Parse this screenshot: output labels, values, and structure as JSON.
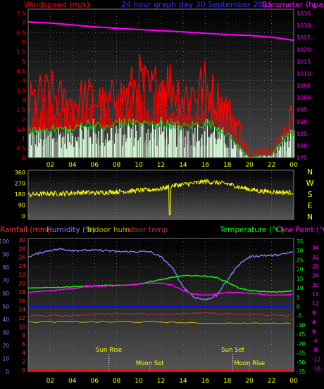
{
  "chart_data": [
    {
      "type": "area",
      "title": "24 hour graph day  30 September 2015",
      "left_label": "Windspeed (m/s)",
      "right_label": "Barometer (hpa)",
      "x_ticks": [
        "02",
        "04",
        "06",
        "08",
        "10",
        "12",
        "14",
        "16",
        "18",
        "20",
        "22",
        "00"
      ],
      "y_left_ticks": [
        "7.5",
        "7",
        "6.5",
        "6",
        "5.5",
        "5",
        "4.5",
        "4",
        "3.5",
        "3",
        "2.5",
        "2",
        "1.5",
        "1",
        "0.5",
        "0"
      ],
      "y_right_ticks": [
        "1035",
        "1030",
        "1025",
        "1020",
        "1015",
        "1010",
        "1005",
        "1000",
        "995",
        "990",
        "985",
        "980",
        "975"
      ],
      "ylim_left": [
        0,
        7.5
      ],
      "ylim_right": [
        975,
        1035
      ],
      "colors": {
        "gust": "#ff0000",
        "average": "#00cc00",
        "barometer": "#ff00ff",
        "bars": "#d8ffd8",
        "left_text": "#ff0000",
        "right_text": "#ff00ff",
        "title": "#3333ff",
        "axis_text": "#ffff00"
      },
      "series": [
        {
          "key": "gust",
          "x": [
            0,
            1,
            2,
            3,
            4,
            5,
            6,
            7,
            8,
            9,
            10,
            11,
            12,
            13,
            14,
            15,
            16,
            17,
            18,
            19,
            20,
            21,
            22,
            23,
            24
          ],
          "values": [
            3.0,
            3.4,
            3.6,
            3.2,
            3.0,
            3.3,
            3.3,
            2.8,
            3.4,
            3.5,
            4.3,
            3.6,
            4.2,
            4.1,
            3.4,
            3.7,
            4.0,
            3.3,
            2.7,
            1.8,
            0.0,
            0.5,
            0.4,
            1.3,
            2.5
          ]
        },
        {
          "key": "average",
          "x": [
            0,
            1,
            2,
            3,
            4,
            5,
            6,
            7,
            8,
            9,
            10,
            11,
            12,
            13,
            14,
            15,
            16,
            17,
            18,
            19,
            20,
            21,
            22,
            23,
            24
          ],
          "values": [
            1.4,
            1.4,
            1.5,
            1.5,
            1.4,
            1.8,
            1.7,
            1.5,
            1.8,
            1.8,
            1.8,
            1.7,
            1.8,
            1.7,
            1.6,
            1.7,
            1.8,
            1.6,
            1.2,
            0.6,
            0.0,
            0.1,
            0.1,
            1.0,
            1.3
          ]
        },
        {
          "key": "barometer",
          "x": [
            0,
            2,
            4,
            6,
            8,
            10,
            12,
            14,
            16,
            18,
            20,
            22,
            24
          ],
          "values": [
            1031.5,
            1031.0,
            1030.2,
            1029.4,
            1028.8,
            1028.3,
            1027.8,
            1027.3,
            1026.7,
            1026.2,
            1025.8,
            1025.1,
            1023.8
          ]
        }
      ]
    },
    {
      "type": "line",
      "left_ticks": [
        "360",
        "270",
        "180",
        "90",
        "0"
      ],
      "right_labels": [
        "N",
        "W",
        "S",
        "E",
        "N"
      ],
      "ylim": [
        0,
        360
      ],
      "colors": {
        "direction": "#ffff00",
        "right_text": "#ffff00"
      },
      "series": [
        {
          "key": "wind-direction",
          "x": [
            0,
            1,
            2,
            3,
            4,
            5,
            6,
            7,
            8,
            9,
            10,
            11,
            12,
            13,
            14,
            15,
            16,
            17,
            18,
            19,
            20,
            21,
            22,
            23,
            24
          ],
          "values": [
            175,
            180,
            185,
            185,
            190,
            195,
            190,
            195,
            200,
            205,
            210,
            215,
            225,
            250,
            260,
            270,
            285,
            275,
            265,
            240,
            220,
            205,
            200,
            195,
            195
          ]
        }
      ]
    },
    {
      "type": "line",
      "header": {
        "rainfall": "Rainfall (mm)",
        "humidity": "Humidity (%)",
        "indoor_hum": "Indoor hum",
        "indoor_temp": "Indoor temp",
        "temperature": "Temperature (°C)",
        "dew_point": "Dew Point (°C)"
      },
      "y_left1_ticks": [
        "100",
        "90",
        "80",
        "70",
        "60",
        "50",
        "40",
        "30",
        "20",
        "10",
        "0"
      ],
      "y_left2_ticks": [
        "30",
        "28",
        "26",
        "24",
        "22",
        "20",
        "18",
        "16",
        "14",
        "12",
        "10",
        "8",
        "6",
        "4",
        "2",
        "0"
      ],
      "y_right1_ticks": [
        "35",
        "30",
        "25",
        "20",
        "15",
        "10",
        "5",
        "0",
        "-5",
        "-10",
        "-15",
        "-20",
        "-25",
        "-30",
        "-35"
      ],
      "y_right2_ticks": [
        "34",
        "32",
        "28",
        "24",
        "20",
        "16",
        "12",
        "8",
        "4",
        "0",
        "-4",
        "-8",
        "-12",
        "-16"
      ],
      "x_ticks": [
        "02",
        "04",
        "06",
        "08",
        "10",
        "12",
        "14",
        "16",
        "18",
        "20",
        "22",
        "00"
      ],
      "annotations": [
        {
          "label": "Sun Rise",
          "hour": 7.3
        },
        {
          "label": "Moon Set",
          "hour": 11.0
        },
        {
          "label": "Sun Set",
          "hour": 18.5
        },
        {
          "label": "Moon Rise",
          "hour": 20.0
        }
      ],
      "ylim_humidity": [
        0,
        100
      ],
      "ylim_temperature": [
        -35,
        35
      ],
      "colors": {
        "humidity": "#8080ff",
        "temperature": "#00ff00",
        "dew_point": "#ff00ff",
        "rainfall": "#ff0000",
        "indoor_hum": "#c8b400",
        "indoor_temp": "#c03030",
        "left1_text": "#8080ff",
        "left2_text": "#ff3333",
        "right1_text": "#00ff00",
        "right2_text": "#ff00ff",
        "grid_blue": "#0000ff"
      },
      "series": [
        {
          "key": "humidity",
          "x": [
            0,
            1,
            2,
            3,
            4,
            5,
            6,
            7,
            8,
            9,
            10,
            11,
            12,
            13,
            14,
            15,
            16,
            17,
            18,
            19,
            20,
            21,
            22,
            23,
            24
          ],
          "values": [
            88,
            91,
            93,
            94,
            93,
            93,
            93,
            93,
            92,
            92,
            92,
            92,
            88,
            80,
            65,
            57,
            55,
            58,
            70,
            82,
            88,
            89,
            89,
            90,
            92
          ]
        },
        {
          "key": "temperature",
          "x": [
            0,
            1,
            2,
            3,
            4,
            5,
            6,
            7,
            8,
            9,
            10,
            11,
            12,
            13,
            14,
            15,
            16,
            17,
            18,
            19,
            20,
            21,
            22,
            23,
            24
          ],
          "values": [
            9.8,
            10.0,
            10.2,
            10.3,
            10.6,
            10.8,
            11.0,
            11.3,
            11.2,
            11.5,
            12.0,
            13.2,
            14.4,
            15.5,
            16.5,
            16.5,
            16.3,
            15.5,
            13.0,
            10.0,
            8.5,
            8.0,
            7.8,
            7.8,
            8.4
          ]
        },
        {
          "key": "dew_point",
          "x": [
            0,
            1,
            2,
            3,
            4,
            5,
            6,
            7,
            8,
            9,
            10,
            11,
            12,
            13,
            14,
            15,
            16,
            17,
            18,
            19,
            20,
            21,
            22,
            23,
            24
          ],
          "values": [
            7.5,
            8.0,
            8.5,
            9.0,
            9.5,
            10.5,
            10.8,
            11.0,
            11.0,
            11.5,
            12.0,
            12.5,
            12.5,
            11.5,
            8.5,
            6.5,
            6.0,
            6.5,
            7.5,
            7.5,
            7.0,
            6.5,
            6.0,
            6.0,
            6.5
          ]
        },
        {
          "key": "indoor_hum",
          "x": [
            0,
            4,
            8,
            12,
            16,
            20,
            24
          ],
          "values": [
            38,
            38,
            38,
            38,
            37,
            37,
            37
          ]
        },
        {
          "key": "indoor_temp",
          "x": [
            0,
            2,
            4,
            6,
            8,
            10,
            12,
            14,
            16,
            18,
            20,
            22,
            24
          ],
          "values": [
            43,
            43,
            43,
            44,
            44,
            44,
            44,
            44,
            45,
            44,
            44,
            43,
            43
          ]
        },
        {
          "key": "rainfall",
          "x": [
            0,
            24
          ],
          "values": [
            0,
            0
          ]
        }
      ]
    }
  ]
}
